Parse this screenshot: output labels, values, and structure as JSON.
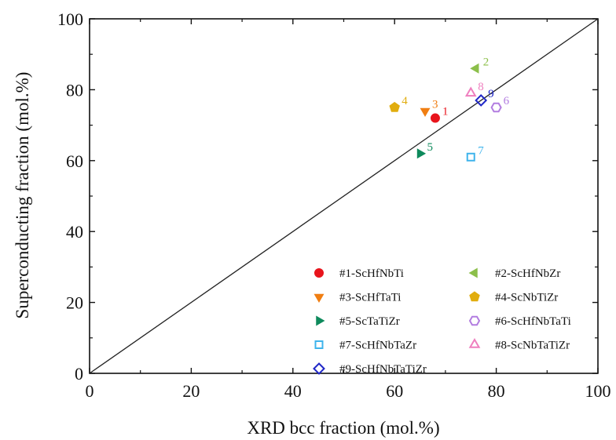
{
  "chart_data": {
    "type": "scatter",
    "xlabel": "XRD bcc fraction (mol.%)",
    "ylabel": "Superconducting fraction (mol.%)",
    "xlim": [
      0,
      100
    ],
    "ylim": [
      0,
      100
    ],
    "xticks": [
      0,
      20,
      40,
      60,
      80,
      100
    ],
    "yticks": [
      0,
      20,
      40,
      60,
      80,
      100
    ],
    "reference_line": {
      "type": "y=x"
    },
    "legend_position": "bottom-right",
    "series": [
      {
        "name": "#1-ScHfNbTi",
        "label": "1",
        "marker": "circle",
        "filled": true,
        "color": "#e8141c",
        "x": 68,
        "y": 72
      },
      {
        "name": "#2-ScHfNbZr",
        "label": "2",
        "marker": "triangle-left",
        "filled": true,
        "color": "#8cbf4a",
        "x": 76,
        "y": 86
      },
      {
        "name": "#3-ScHfTaTi",
        "label": "3",
        "marker": "triangle-down",
        "filled": true,
        "color": "#f07e12",
        "x": 66,
        "y": 74
      },
      {
        "name": "#4-ScNbTiZr",
        "label": "4",
        "marker": "pentagon",
        "filled": true,
        "color": "#e1ad0f",
        "x": 60,
        "y": 75
      },
      {
        "name": "#5-ScTaTiZr",
        "label": "5",
        "marker": "triangle-right",
        "filled": true,
        "color": "#0e8a5c",
        "x": 65,
        "y": 62
      },
      {
        "name": "#6-ScHfNbTaTi",
        "label": "6",
        "marker": "hexagon",
        "filled": false,
        "color": "#b27de0",
        "x": 80,
        "y": 75
      },
      {
        "name": "#7-ScHfNbTaZr",
        "label": "7",
        "marker": "square",
        "filled": false,
        "color": "#3fb4ec",
        "x": 75,
        "y": 61
      },
      {
        "name": "#8-ScNbTaTiZr",
        "label": "8",
        "marker": "triangle-up",
        "filled": false,
        "color": "#ef7fbf",
        "x": 75,
        "y": 79
      },
      {
        "name": "#9-ScHfNbTaTiZr",
        "label": "9",
        "marker": "diamond",
        "filled": false,
        "color": "#1f26c7",
        "x": 77,
        "y": 77
      }
    ]
  }
}
